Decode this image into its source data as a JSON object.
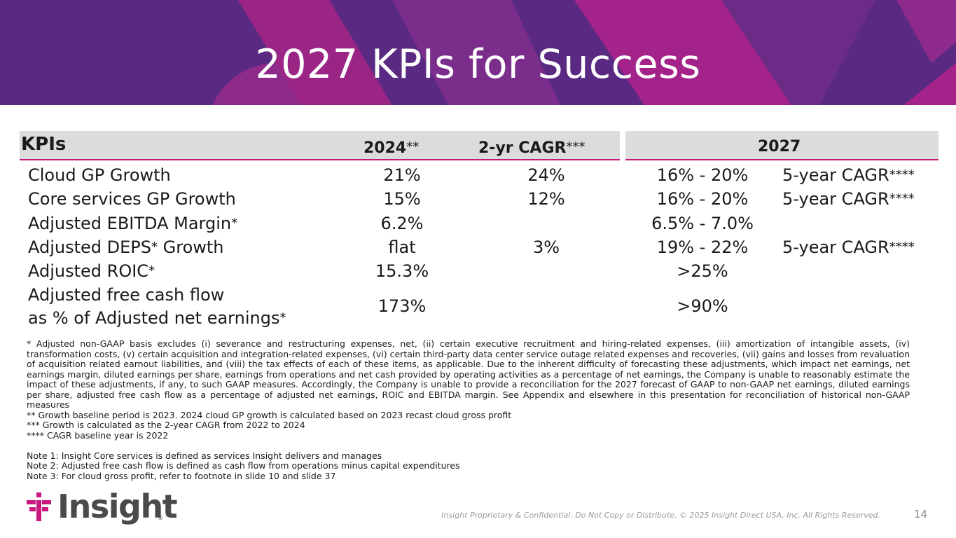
{
  "header": {
    "title": "2027 KPIs for Success"
  },
  "colors": {
    "banner": "#5a2a83",
    "accent": "#c8197f",
    "header_fill": "#dcdcdc"
  },
  "table": {
    "col_kpis": "KPIs",
    "col_2024": "2024",
    "col_2024_marker": "**",
    "col_cagr": "2-yr CAGR",
    "col_cagr_marker": "***",
    "col_2027": "2027",
    "rows": [
      {
        "name": "Cloud GP Growth",
        "name_marker": "",
        "v2024": "21%",
        "cagr": "24%",
        "v2027": "16% - 20%",
        "note": "5-year CAGR",
        "note_marker": "****"
      },
      {
        "name": "Core services GP Growth",
        "name_marker": "",
        "v2024": "15%",
        "cagr": "12%",
        "v2027": "16% - 20%",
        "note": "5-year CAGR",
        "note_marker": "****"
      },
      {
        "name": "Adjusted EBITDA Margin",
        "name_marker": "*",
        "v2024": "6.2%",
        "cagr": "",
        "v2027": "6.5% - 7.0%",
        "note": "",
        "note_marker": ""
      },
      {
        "name": "Adjusted DEPS",
        "name_marker": "*",
        "name_suffix": " Growth",
        "v2024": "flat",
        "cagr": "3%",
        "v2027": "19% - 22%",
        "note": "5-year CAGR",
        "note_marker": "****"
      },
      {
        "name": "Adjusted ROIC",
        "name_marker": "*",
        "v2024": "15.3%",
        "cagr": "",
        "v2027": ">25%",
        "note": "",
        "note_marker": ""
      },
      {
        "name_line1": "Adjusted free cash flow",
        "name_line2": "as % of Adjusted net earnings",
        "name_marker": "*",
        "v2024": "173%",
        "cagr": "",
        "v2027": ">90%",
        "note": "",
        "note_marker": ""
      }
    ]
  },
  "footnotes": {
    "main": "* Adjusted non-GAAP basis excludes (i) severance and restructuring expenses, net, (ii) certain executive recruitment and hiring-related expenses, (iii) amortization of intangible assets, (iv) transformation costs, (v) certain acquisition and integration-related expenses, (vi) certain third-party data center service outage related expenses and recoveries, (vii) gains and losses from revaluation of acquisition related earnout liabilities, and (viii) the tax effects of each of these items, as applicable. Due to the inherent difficulty of forecasting these adjustments, which impact net earnings, net earnings margin, diluted earnings per share, earnings from operations and net cash provided by operating activities as a percentage of net earnings, the Company is unable to reasonably estimate the impact of these adjustments, if any, to such GAAP measures. Accordingly, the Company is unable to provide a reconciliation for the 2027 forecast of GAAP to non-GAAP net earnings, diluted earnings per share, adjusted free cash flow as a percentage of adjusted net earnings, ROIC and EBITDA margin. See Appendix and elsewhere in this presentation for reconciliation of historical non-GAAP measures",
    "fn2": "** Growth baseline period is 2023. 2024 cloud GP growth is calculated based on 2023 recast cloud gross profit",
    "fn3": "*** Growth is calculated as the 2-year CAGR from 2022 to 2024",
    "fn4": "**** CAGR baseline year is 2022",
    "note1": "Note 1: Insight Core services is defined as services Insight delivers and manages",
    "note2": "Note 2: Adjusted free cash flow is defined as cash flow from operations minus capital expenditures",
    "note3": "Note 3: For cloud gross profit, refer to footnote in slide 10 and slide 37"
  },
  "footer": {
    "logo_text": "Insight",
    "logo_reg": "®",
    "confidential": "Insight Proprietary & Confidential. Do Not Copy or Distribute. © 2025 Insight Direct USA, Inc. All Rights Reserved.",
    "page_number": "14"
  }
}
